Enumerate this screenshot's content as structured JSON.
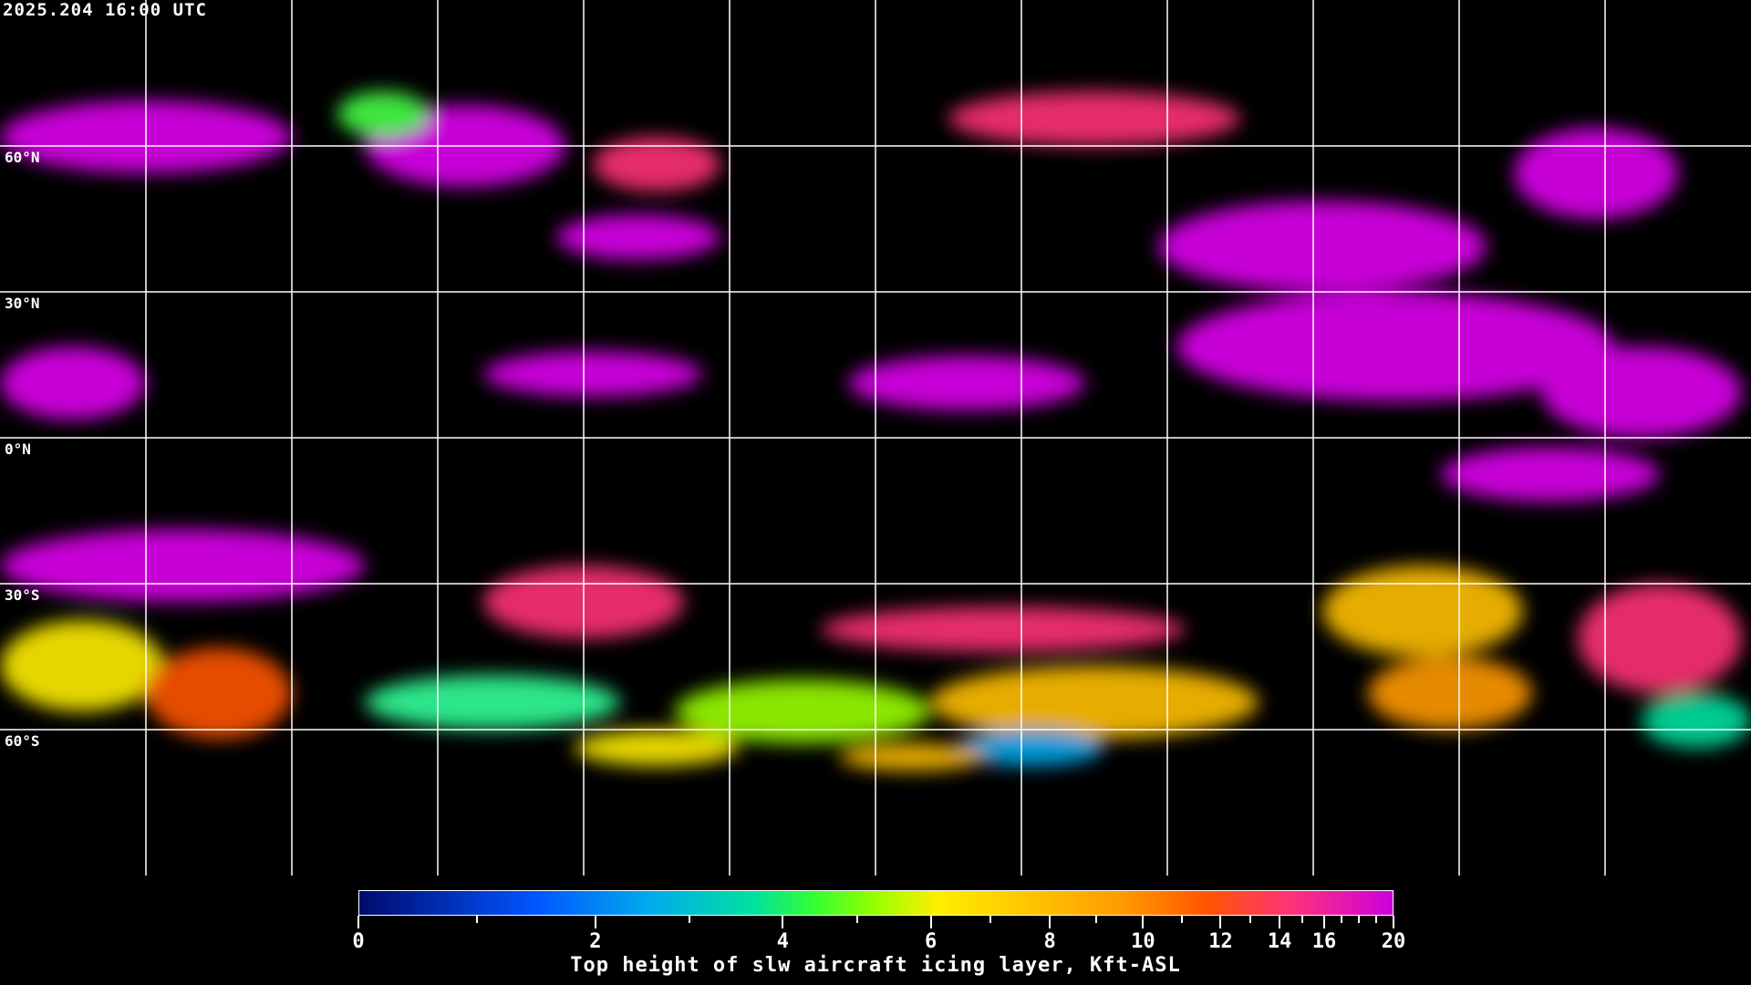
{
  "timestamp": "2025.204 16:00 UTC",
  "map": {
    "projection": "equirectangular",
    "longitude_grid_step_deg": 30,
    "latitude_grid_lines": [
      60,
      30,
      0,
      -30,
      -60
    ],
    "latitude_labels": [
      "60°N",
      "30°N",
      "0°N",
      "30°S",
      "60°S"
    ],
    "gridline_color": "#ffffff",
    "coastline_color": "#ffffff",
    "background_color": "#000000"
  },
  "colorbar": {
    "title": "Top height of slw aircraft icing layer, Kft-ASL",
    "min": 0,
    "max": 20,
    "major_ticks": [
      0,
      2,
      4,
      6,
      8,
      10,
      12,
      14,
      16,
      20
    ],
    "major_tick_labels": [
      "0",
      "2",
      "4",
      "6",
      "8",
      "10",
      "12",
      "14",
      "16",
      "20"
    ],
    "minor_ticks": [
      1,
      3,
      5,
      7,
      9,
      11,
      13,
      15,
      17,
      18,
      19
    ],
    "colors": [
      "#000a6e",
      "#0055ff",
      "#00aaee",
      "#00e0a0",
      "#33ff33",
      "#99ff00",
      "#ffee00",
      "#ffc000",
      "#ff9900",
      "#ff5500",
      "#ff3377",
      "#cc00dd"
    ]
  }
}
